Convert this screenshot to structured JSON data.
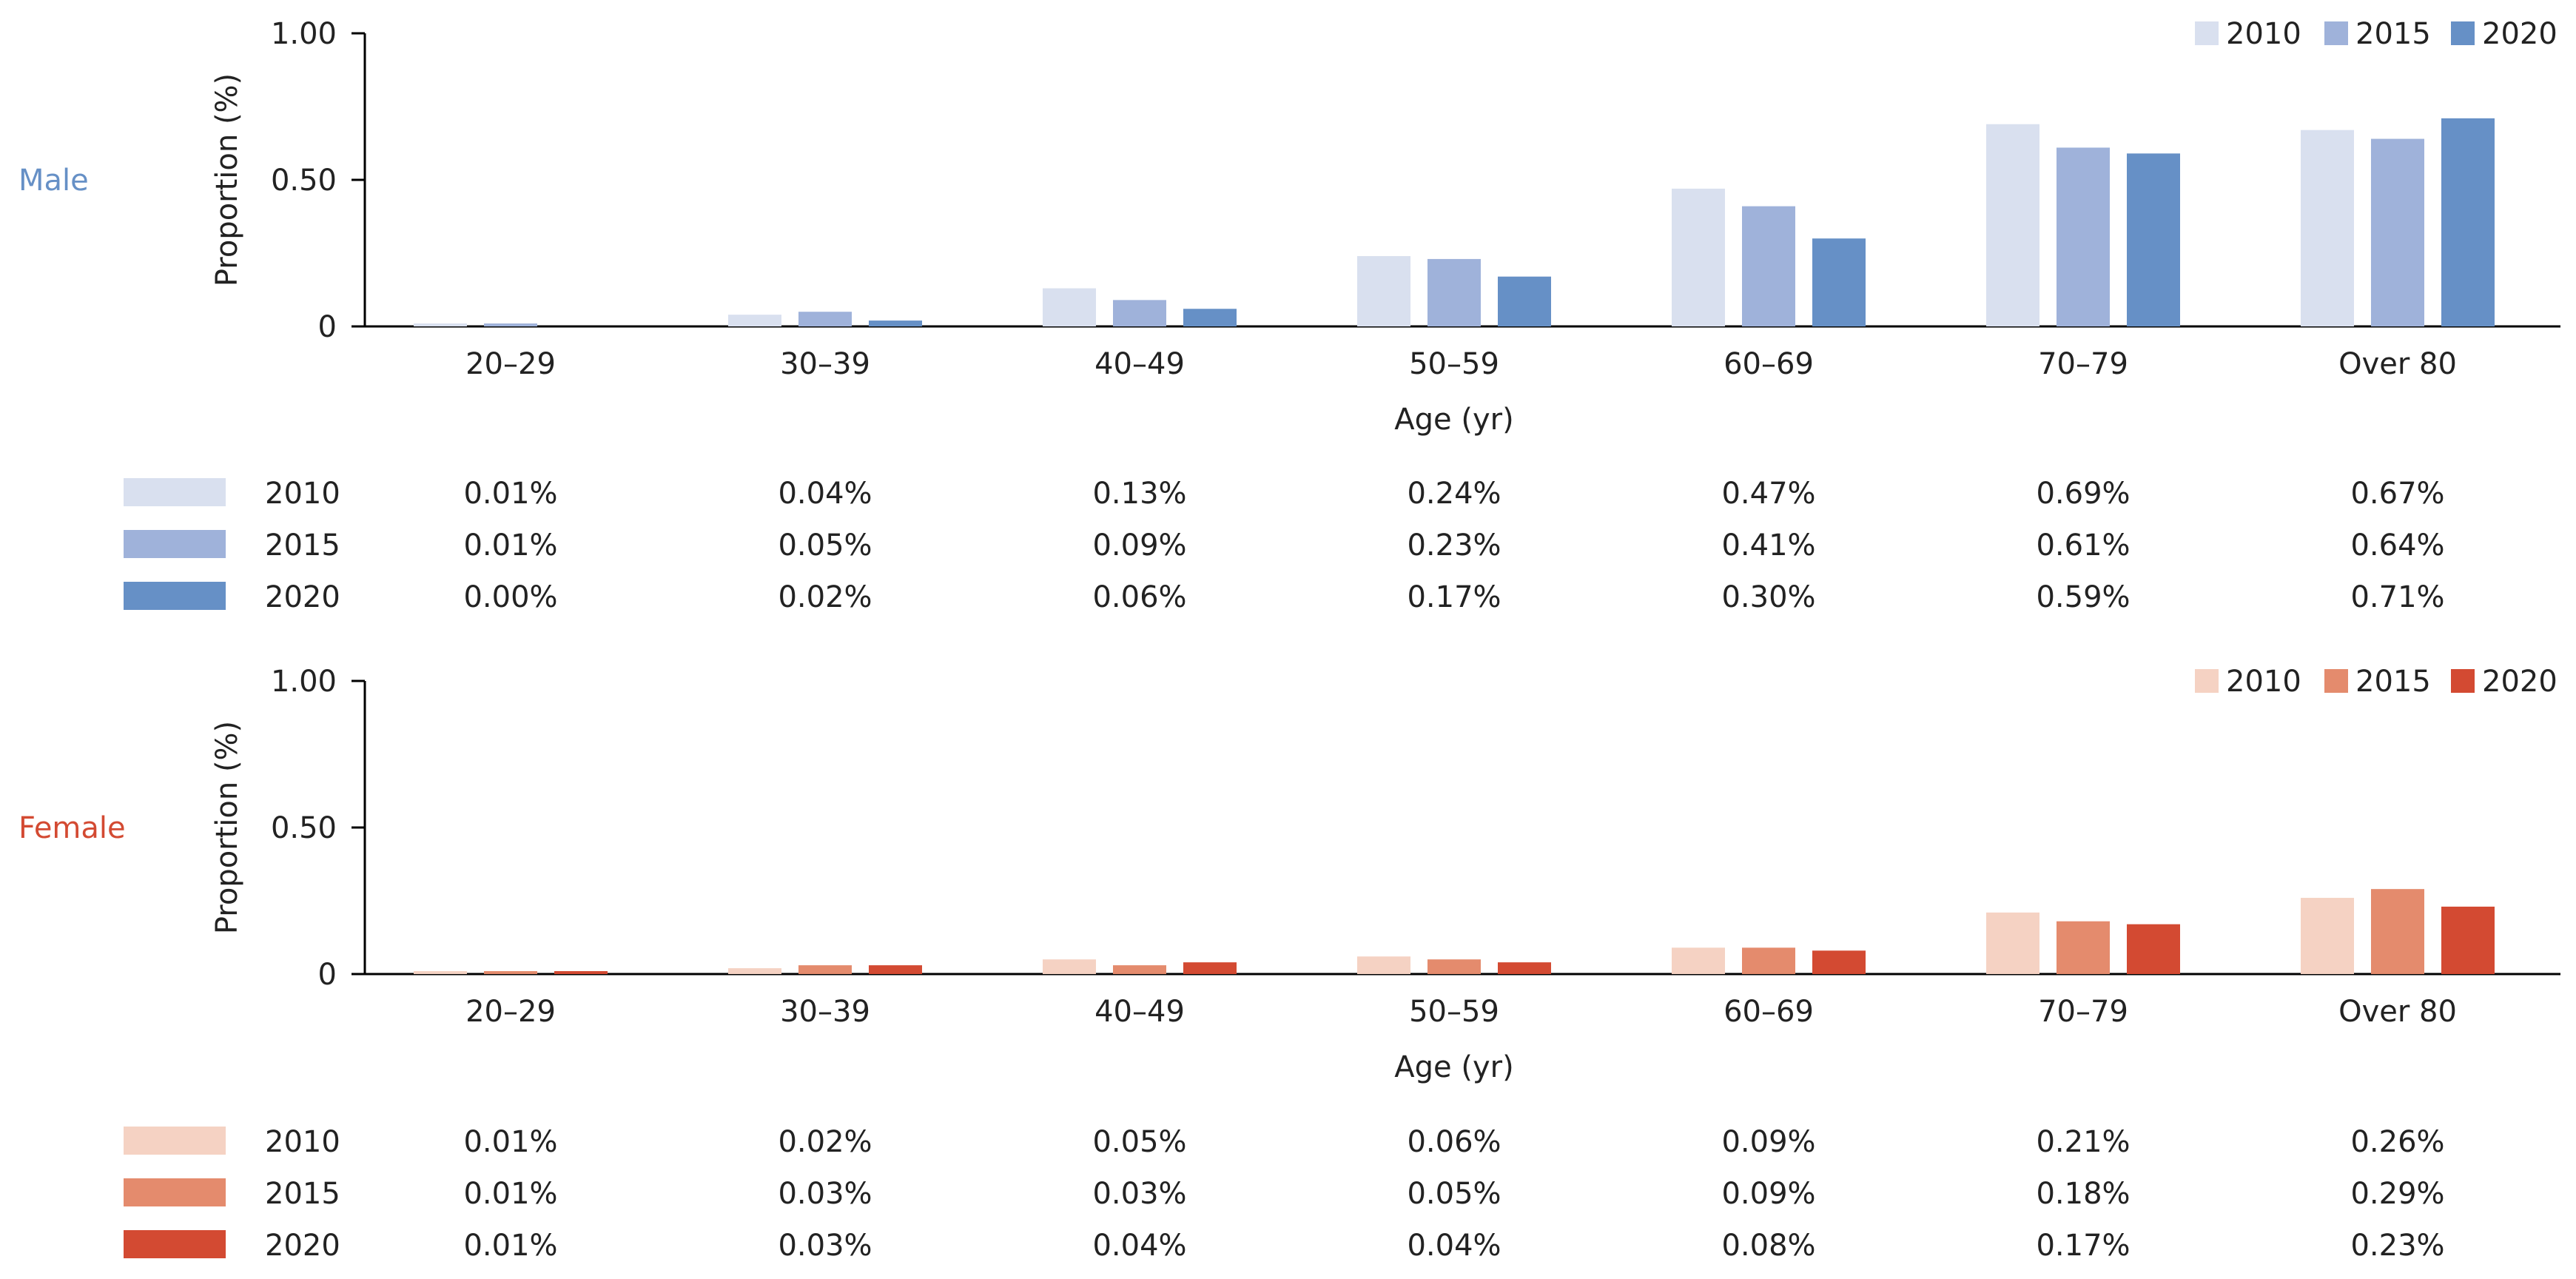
{
  "chart_data": [
    {
      "type": "bar",
      "panel_label": "Male",
      "categories": [
        "20–29",
        "30–39",
        "40–49",
        "50–59",
        "60–69",
        "70–79",
        "Over 80"
      ],
      "xlabel": "Age (yr)",
      "ylabel": "Proportion (%)",
      "ylim": [
        0,
        1.0
      ],
      "yticks": [
        "0",
        "0.50",
        "1.00"
      ],
      "ytick_values": [
        0,
        0.5,
        1.0
      ],
      "legend_position": "top-right",
      "grid": false,
      "series": [
        {
          "name": "2010",
          "color": "#d9e0ef",
          "values": [
            0.01,
            0.04,
            0.13,
            0.24,
            0.47,
            0.69,
            0.67
          ],
          "labels": [
            "0.01%",
            "0.04%",
            "0.13%",
            "0.24%",
            "0.47%",
            "0.69%",
            "0.67%"
          ]
        },
        {
          "name": "2015",
          "color": "#9fb2da",
          "values": [
            0.01,
            0.05,
            0.09,
            0.23,
            0.41,
            0.61,
            0.64
          ],
          "labels": [
            "0.01%",
            "0.05%",
            "0.09%",
            "0.23%",
            "0.41%",
            "0.61%",
            "0.64%"
          ]
        },
        {
          "name": "2020",
          "color": "#6690c6",
          "values": [
            0.0,
            0.02,
            0.06,
            0.17,
            0.3,
            0.59,
            0.71
          ],
          "labels": [
            "0.00%",
            "0.02%",
            "0.06%",
            "0.17%",
            "0.30%",
            "0.59%",
            "0.71%"
          ]
        }
      ],
      "panel_label_color": "#6690c6"
    },
    {
      "type": "bar",
      "panel_label": "Female",
      "categories": [
        "20–29",
        "30–39",
        "40–49",
        "50–59",
        "60–69",
        "70–79",
        "Over 80"
      ],
      "xlabel": "Age (yr)",
      "ylabel": "Proportion (%)",
      "ylim": [
        0,
        1.0
      ],
      "yticks": [
        "0",
        "0.50",
        "1.00"
      ],
      "ytick_values": [
        0,
        0.5,
        1.0
      ],
      "legend_position": "top-right",
      "grid": false,
      "series": [
        {
          "name": "2010",
          "color": "#f5d2c3",
          "values": [
            0.01,
            0.02,
            0.05,
            0.06,
            0.09,
            0.21,
            0.26
          ],
          "labels": [
            "0.01%",
            "0.02%",
            "0.05%",
            "0.06%",
            "0.09%",
            "0.21%",
            "0.26%"
          ]
        },
        {
          "name": "2015",
          "color": "#e48b6d",
          "values": [
            0.01,
            0.03,
            0.03,
            0.05,
            0.09,
            0.18,
            0.29
          ],
          "labels": [
            "0.01%",
            "0.03%",
            "0.03%",
            "0.05%",
            "0.09%",
            "0.18%",
            "0.29%"
          ]
        },
        {
          "name": "2020",
          "color": "#d34a32",
          "values": [
            0.01,
            0.03,
            0.04,
            0.04,
            0.08,
            0.17,
            0.23
          ],
          "labels": [
            "0.01%",
            "0.03%",
            "0.04%",
            "0.04%",
            "0.08%",
            "0.17%",
            "0.23%"
          ]
        }
      ],
      "panel_label_color": "#d34a32"
    }
  ]
}
